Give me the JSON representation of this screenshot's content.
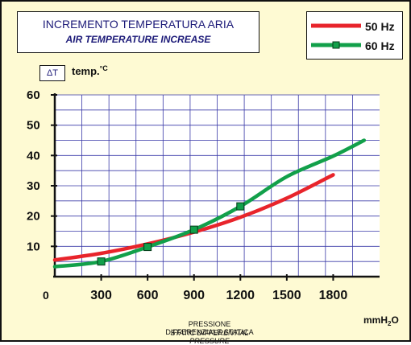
{
  "chart_data": {
    "type": "line",
    "title": "INCREMENTO TEMPERATURA ARIA",
    "subtitle": "AIR TEMPERATURE INCREASE",
    "ylabel_symbol": "ΔT",
    "ylabel_text": "temp.",
    "ylabel_unit": "°C",
    "xlabel": "PRESSIONE DIFFERENZIALE STATICA",
    "xlabel_en": "STATIC DIFFERENTIAL PRESSURE",
    "xunit_main": "mmH",
    "xunit_sub": "2",
    "xunit_end": "O",
    "origin_label": "0",
    "x_ticks": [
      300,
      600,
      900,
      1200,
      1500,
      1800
    ],
    "y_ticks": [
      10,
      20,
      30,
      40,
      50,
      60
    ],
    "xlim": [
      0,
      2100
    ],
    "ylim": [
      0,
      60
    ],
    "grid": true,
    "legend_position": "top-right",
    "series": [
      {
        "name": "50 Hz",
        "color": "#e8242b",
        "markers": false,
        "x": [
          0,
          300,
          600,
          900,
          1200,
          1500,
          1800
        ],
        "y": [
          5.5,
          7.7,
          10.8,
          14.7,
          19.6,
          25.9,
          33.6
        ]
      },
      {
        "name": "60 Hz",
        "color": "#12a04a",
        "markers": true,
        "marker_x": [
          300,
          600,
          900,
          1200
        ],
        "x": [
          0,
          300,
          600,
          900,
          1200,
          1500,
          1800,
          2000
        ],
        "y": [
          3.3,
          5.0,
          9.8,
          15.5,
          23.2,
          33.0,
          39.8,
          45.0
        ]
      }
    ]
  }
}
